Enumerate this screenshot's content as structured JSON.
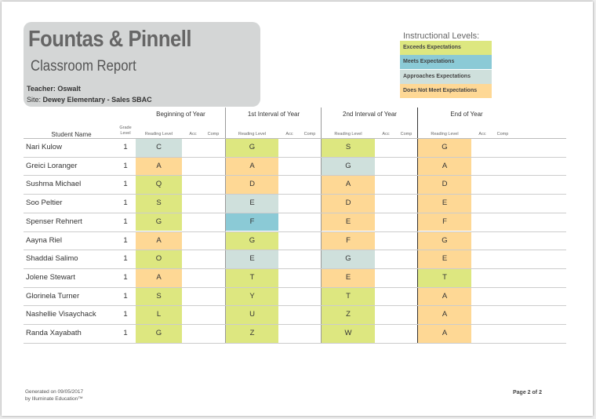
{
  "header": {
    "title": "Fountas & Pinnell",
    "subtitle": "Classroom Report",
    "teacher_label": "Teacher:",
    "teacher": "Oswalt",
    "site_label": "Site:",
    "site": "Dewey Elementary - Sales SBAC"
  },
  "legend": {
    "title": "Instructional Levels:",
    "levels": [
      {
        "label": "Exceeds Expectations",
        "color": "#dde780"
      },
      {
        "label": "Meets Expectations",
        "color": "#8bcad6"
      },
      {
        "label": "Approaches Expectations",
        "color": "#cfe0dc"
      },
      {
        "label": "Does Not Meet Expectations",
        "color": "#fed895"
      }
    ]
  },
  "table": {
    "periods": [
      "Beginning of Year",
      "1st Interval of Year",
      "2nd Interval of Year",
      "End of Year"
    ],
    "columns": {
      "student": "Student Name",
      "grade": "Grade Level",
      "reading": "Reading Level",
      "acc": "Acc",
      "comp": "Comp"
    },
    "rows": [
      {
        "name": "Nari Kulow",
        "grade": 1,
        "levels": [
          {
            "text": "C",
            "level": 2
          },
          {
            "text": "G",
            "level": 0
          },
          {
            "text": "S",
            "level": 0
          },
          {
            "text": "G",
            "level": 3
          }
        ]
      },
      {
        "name": "Greici Loranger",
        "grade": 1,
        "levels": [
          {
            "text": "A",
            "level": 3
          },
          {
            "text": "A",
            "level": 3
          },
          {
            "text": "G",
            "level": 2
          },
          {
            "text": "A",
            "level": 3
          }
        ]
      },
      {
        "name": "Sushma Michael",
        "grade": 1,
        "levels": [
          {
            "text": "Q",
            "level": 0
          },
          {
            "text": "D",
            "level": 3
          },
          {
            "text": "A",
            "level": 3
          },
          {
            "text": "D",
            "level": 3
          }
        ]
      },
      {
        "name": "Soo Peltier",
        "grade": 1,
        "levels": [
          {
            "text": "S",
            "level": 0
          },
          {
            "text": "E",
            "level": 2
          },
          {
            "text": "D",
            "level": 3
          },
          {
            "text": "E",
            "level": 3
          }
        ]
      },
      {
        "name": "Spenser Rehnert",
        "grade": 1,
        "levels": [
          {
            "text": "G",
            "level": 0
          },
          {
            "text": "F",
            "level": 1
          },
          {
            "text": "E",
            "level": 3
          },
          {
            "text": "F",
            "level": 3
          }
        ]
      },
      {
        "name": "Aayna Riel",
        "grade": 1,
        "levels": [
          {
            "text": "A",
            "level": 3
          },
          {
            "text": "G",
            "level": 0
          },
          {
            "text": "F",
            "level": 3
          },
          {
            "text": "G",
            "level": 3
          }
        ]
      },
      {
        "name": "Shaddai Salimo",
        "grade": 1,
        "levels": [
          {
            "text": "O",
            "level": 0
          },
          {
            "text": "E",
            "level": 2
          },
          {
            "text": "G",
            "level": 2
          },
          {
            "text": "E",
            "level": 3
          }
        ]
      },
      {
        "name": "Jolene Stewart",
        "grade": 1,
        "levels": [
          {
            "text": "A",
            "level": 3
          },
          {
            "text": "T",
            "level": 0
          },
          {
            "text": "E",
            "level": 3
          },
          {
            "text": "T",
            "level": 0
          }
        ]
      },
      {
        "name": "Glorinela Turner",
        "grade": 1,
        "levels": [
          {
            "text": "S",
            "level": 0
          },
          {
            "text": "Y",
            "level": 0
          },
          {
            "text": "T",
            "level": 0
          },
          {
            "text": "A",
            "level": 3
          }
        ]
      },
      {
        "name": "Nashellie Visaychack",
        "grade": 1,
        "levels": [
          {
            "text": "L",
            "level": 0
          },
          {
            "text": "U",
            "level": 0
          },
          {
            "text": "Z",
            "level": 0
          },
          {
            "text": "A",
            "level": 3
          }
        ]
      },
      {
        "name": "Randa Xayabath",
        "grade": 1,
        "levels": [
          {
            "text": "G",
            "level": 0
          },
          {
            "text": "Z",
            "level": 0
          },
          {
            "text": "W",
            "level": 0
          },
          {
            "text": "A",
            "level": 3
          }
        ]
      }
    ]
  },
  "footer": {
    "generated": "Generated on 09/05/2017",
    "by": "by Illuminate Education™",
    "page": "Page 2 of 2"
  }
}
